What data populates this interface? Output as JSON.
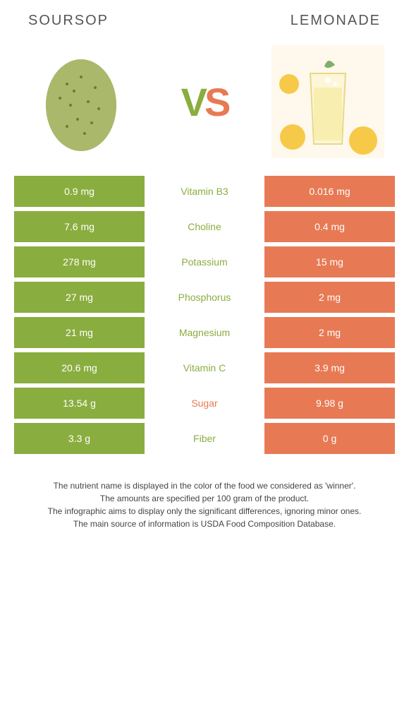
{
  "header": {
    "left": "Soursop",
    "right": "Lemonade"
  },
  "vs": {
    "v": "V",
    "s": "S"
  },
  "colors": {
    "left": "#8aad3f",
    "right": "#e77a54",
    "mid_winner_left": "#8aad3f",
    "mid_winner_right": "#e77a54"
  },
  "rows": [
    {
      "left": "0.9 mg",
      "mid": "Vitamin B3",
      "right": "0.016 mg",
      "winner": "left"
    },
    {
      "left": "7.6 mg",
      "mid": "Choline",
      "right": "0.4 mg",
      "winner": "left"
    },
    {
      "left": "278 mg",
      "mid": "Potassium",
      "right": "15 mg",
      "winner": "left"
    },
    {
      "left": "27 mg",
      "mid": "Phosphorus",
      "right": "2 mg",
      "winner": "left"
    },
    {
      "left": "21 mg",
      "mid": "Magnesium",
      "right": "2 mg",
      "winner": "left"
    },
    {
      "left": "20.6 mg",
      "mid": "Vitamin C",
      "right": "3.9 mg",
      "winner": "left"
    },
    {
      "left": "13.54 g",
      "mid": "Sugar",
      "right": "9.98 g",
      "winner": "right"
    },
    {
      "left": "3.3 g",
      "mid": "Fiber",
      "right": "0 g",
      "winner": "left"
    }
  ],
  "footer": {
    "line1": "The nutrient name is displayed in the color of the food we considered as 'winner'.",
    "line2": "The amounts are specified per 100 gram of the product.",
    "line3": "The infographic aims to display only the significant differences, ignoring minor ones.",
    "line4": "The main source of information is USDA Food Composition Database."
  }
}
